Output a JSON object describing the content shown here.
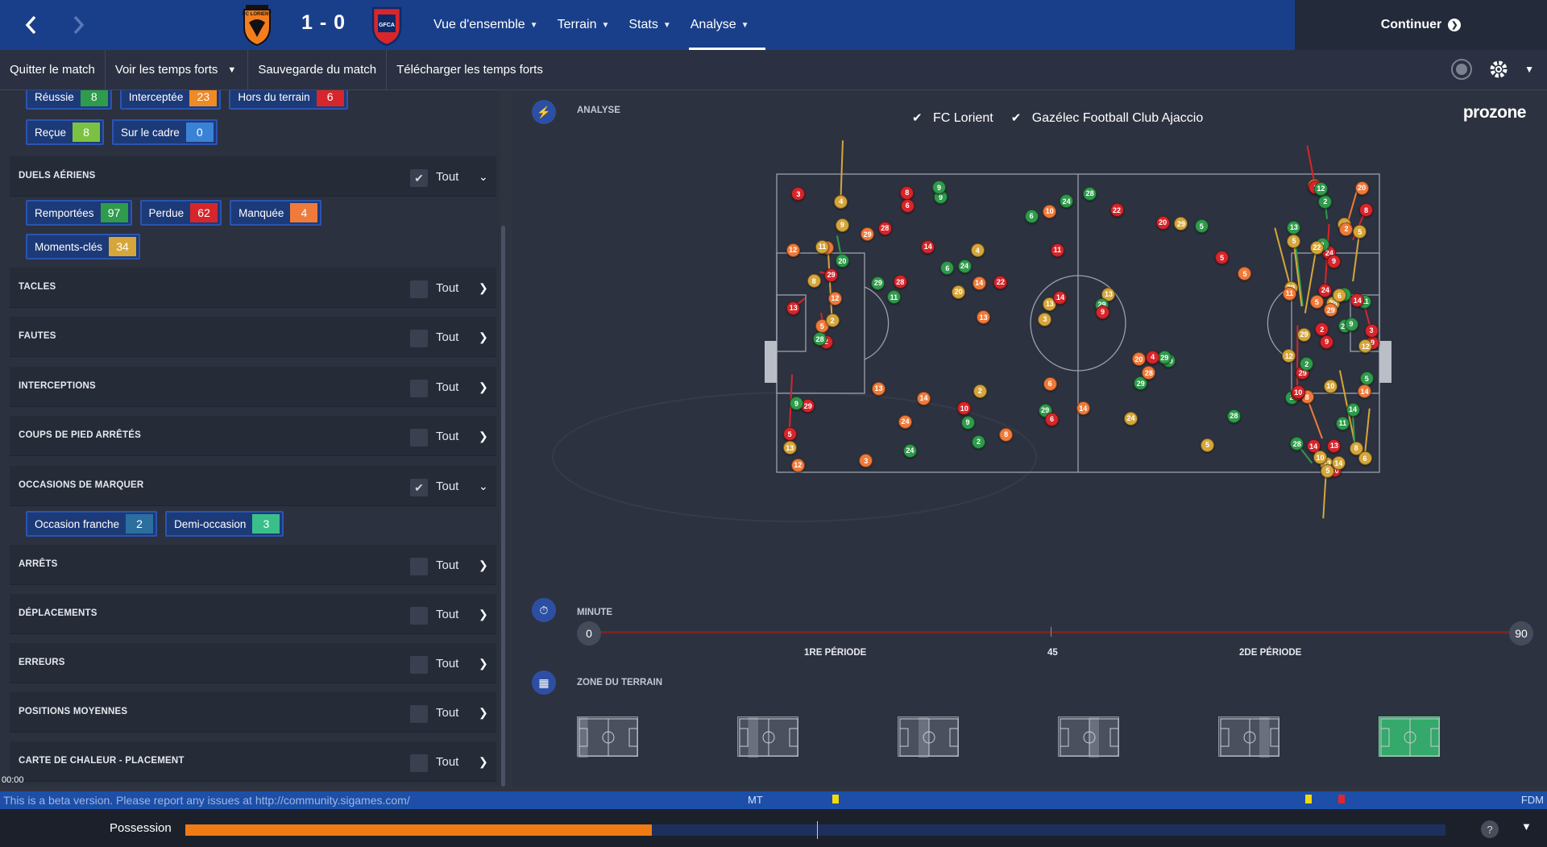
{
  "header": {
    "score": "1 - 0",
    "home_crest": "FC LORIENT",
    "away_crest": "GFCA",
    "menu": [
      {
        "label": "Vue d'ensemble",
        "active": false
      },
      {
        "label": "Terrain",
        "active": false
      },
      {
        "label": "Stats",
        "active": false
      },
      {
        "label": "Analyse",
        "active": true
      }
    ],
    "continue_label": "Continuer"
  },
  "subbar": {
    "quit": "Quitter le match",
    "highlights": "Voir les temps forts",
    "save": "Sauvegarde du match",
    "download": "Télécharger les temps forts"
  },
  "left_panel": {
    "top_tags_row1": [
      {
        "label": "Réussie",
        "value": "8",
        "color": "#2f9b4c"
      },
      {
        "label": "Interceptée",
        "value": "23",
        "color": "#f08a24"
      },
      {
        "label": "Hors du terrain",
        "value": "6",
        "color": "#d6262b"
      }
    ],
    "top_tags_row2": [
      {
        "label": "Reçue",
        "value": "8",
        "color": "#7cc242"
      },
      {
        "label": "Sur le cadre",
        "value": "0",
        "color": "#3a82d6"
      }
    ],
    "aerial": {
      "name": "DUELS AÉRIENS",
      "tout": "Tout",
      "checked": true,
      "tags": [
        {
          "label": "Remportées",
          "value": "97",
          "color": "#2f9b4c"
        },
        {
          "label": "Perdue",
          "value": "62",
          "color": "#d6262b"
        },
        {
          "label": "Manquée",
          "value": "4",
          "color": "#f07a3a"
        },
        {
          "label": "Moments-clés",
          "value": "34",
          "color": "#d6a63a"
        }
      ]
    },
    "tackles": {
      "name": "TACLES",
      "tout": "Tout"
    },
    "fouls": {
      "name": "FAUTES",
      "tout": "Tout"
    },
    "interceptions": {
      "name": "INTERCEPTIONS",
      "tout": "Tout"
    },
    "set_pieces": {
      "name": "COUPS DE PIED ARRÊTÉS",
      "tout": "Tout"
    },
    "chances": {
      "name": "OCCASIONS DE MARQUER",
      "tout": "Tout",
      "checked": true,
      "tags": [
        {
          "label": "Occasion franche",
          "value": "2",
          "color": "#2b6f9e"
        },
        {
          "label": "Demi-occasion",
          "value": "3",
          "color": "#3bbf8a"
        }
      ]
    },
    "saves": {
      "name": "ARRÊTS",
      "tout": "Tout"
    },
    "movement": {
      "name": "DÉPLACEMENTS",
      "tout": "Tout"
    },
    "errors": {
      "name": "ERREURS",
      "tout": "Tout"
    },
    "avg_positions": {
      "name": "POSITIONS MOYENNES",
      "tout": "Tout"
    },
    "heatmap": {
      "name": "CARTE DE CHALEUR - PLACEMENT",
      "tout": "Tout"
    }
  },
  "analysis": {
    "title": "ANALYSE",
    "teams": [
      {
        "label": "FC Lorient",
        "checked": true
      },
      {
        "label": "Gazélec Football Club Ajaccio",
        "checked": true
      }
    ],
    "brand": "prozone",
    "minute_title": "MINUTE",
    "minute_start": "0",
    "minute_end": "90",
    "period1": "1RE PÉRIODE",
    "period_mid": "45",
    "period2": "2DE PÉRIODE",
    "zone_title": "ZONE DU TERRAIN",
    "zones_active": 6
  },
  "status": {
    "time": "00:00",
    "beta_text": "This is a beta version. Please report any issues at http://community.sigames.com/",
    "mt": "MT",
    "fdm": "FDM",
    "possession_label": "Possession",
    "possession_home": 0.37
  },
  "colors": {
    "won": "#2f9b4c",
    "lost": "#d6262b",
    "missed": "#f07a3a",
    "key": "#d6a63a",
    "accent": "#1a3f8a"
  }
}
